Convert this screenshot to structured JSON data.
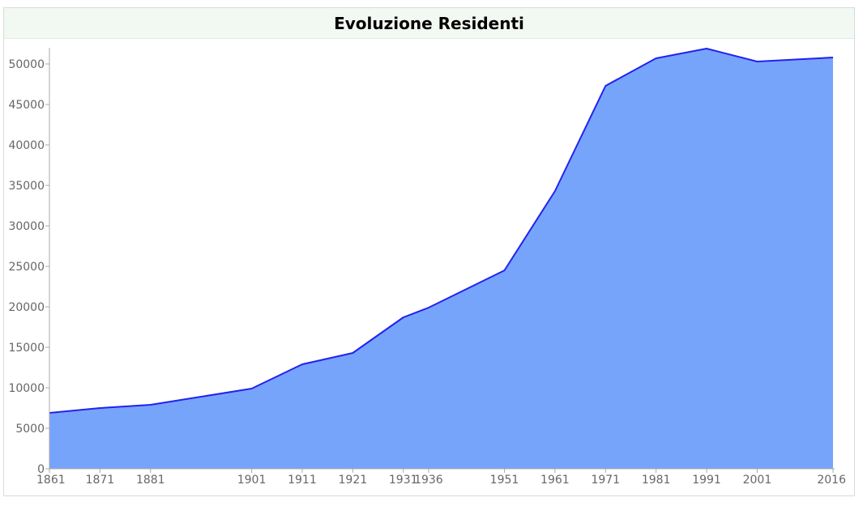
{
  "chart_data": {
    "type": "area",
    "title": "Evoluzione Residenti",
    "xlabel": "",
    "ylabel": "",
    "xlim": [
      1861,
      2016
    ],
    "ylim": [
      0,
      52000
    ],
    "x_ticks": [
      1861,
      1871,
      1881,
      1901,
      1911,
      1921,
      1931,
      1936,
      1951,
      1961,
      1971,
      1981,
      1991,
      2001,
      2016
    ],
    "y_ticks": [
      0,
      5000,
      10000,
      15000,
      20000,
      25000,
      30000,
      35000,
      40000,
      45000,
      50000
    ],
    "grid": false,
    "legend": "none",
    "colors": {
      "fill": "#77a4fb",
      "line": "#2222ee",
      "axis": "#aaaaaa",
      "tick_text": "#666666"
    },
    "series": [
      {
        "x": [
          1861,
          1871,
          1881,
          1901,
          1911,
          1921,
          1931,
          1936,
          1951,
          1961,
          1971,
          1981,
          1991,
          2001,
          2016
        ],
        "values": [
          6900,
          7500,
          7900,
          9900,
          12900,
          14300,
          18700,
          19900,
          24500,
          34300,
          47300,
          50700,
          51900,
          50300,
          50800
        ]
      }
    ]
  }
}
